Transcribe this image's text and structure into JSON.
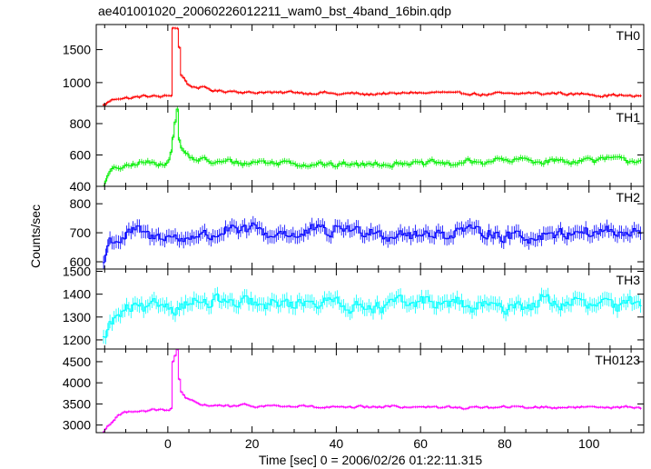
{
  "title": "ae401001020_20060226012211_wam0_bst_4band_16bin.qdp",
  "xlabel": "Time [sec] 0 = 2006/02/26 01:22:11.315",
  "ylabel": "Counts/sec",
  "chart_data": {
    "type": "line",
    "title": "ae401001020_20060226012211_wam0_bst_4band_16bin.qdp",
    "xlabel": "Time [sec] 0 = 2006/02/26 01:22:11.315",
    "ylabel": "Counts/sec",
    "xlim": [
      -17,
      113
    ],
    "x_ticks": [
      "0",
      "20",
      "40",
      "60",
      "80",
      "100"
    ],
    "x_step": 0.5,
    "panels": [
      {
        "name": "TH0",
        "color": "#ff0000",
        "ylim": [
          640,
          1880
        ],
        "y_ticks": [
          1000,
          1500
        ],
        "baseline": 810,
        "noise": 40,
        "keypoints": [
          [
            -15.5,
            660
          ],
          [
            -14,
            720
          ],
          [
            -12,
            760
          ],
          [
            -8,
            790
          ],
          [
            0,
            800
          ],
          [
            0.8,
            810
          ],
          [
            1.0,
            1820
          ],
          [
            2.2,
            1820
          ],
          [
            2.4,
            1600
          ],
          [
            2.6,
            1450
          ],
          [
            3,
            1100
          ],
          [
            5,
            950
          ],
          [
            10,
            880
          ],
          [
            20,
            860
          ],
          [
            40,
            830
          ],
          [
            60,
            840
          ],
          [
            80,
            830
          ],
          [
            100,
            830
          ],
          [
            112,
            790
          ]
        ]
      },
      {
        "name": "TH1",
        "color": "#00ee00",
        "ylim": [
          400,
          910
        ],
        "y_ticks": [
          400,
          600,
          800
        ],
        "baseline": 545,
        "noise": 33,
        "keypoints": [
          [
            -15.5,
            410
          ],
          [
            -14,
            490
          ],
          [
            -12,
            520
          ],
          [
            -8,
            540
          ],
          [
            0,
            550
          ],
          [
            0.6,
            620
          ],
          [
            1.2,
            760
          ],
          [
            2.0,
            880
          ],
          [
            2.4,
            700
          ],
          [
            3,
            640
          ],
          [
            6,
            570
          ],
          [
            20,
            550
          ],
          [
            50,
            540
          ],
          [
            80,
            560
          ],
          [
            100,
            570
          ],
          [
            112,
            560
          ]
        ]
      },
      {
        "name": "TH2",
        "color": "#0000ff",
        "ylim": [
          575,
          860
        ],
        "y_ticks": [
          600,
          700,
          800
        ],
        "baseline": 695,
        "noise": 42,
        "keypoints": [
          [
            -15.5,
            590
          ],
          [
            -14,
            660
          ],
          [
            -10,
            690
          ],
          [
            0,
            690
          ],
          [
            20,
            700
          ],
          [
            40,
            705
          ],
          [
            60,
            700
          ],
          [
            80,
            695
          ],
          [
            100,
            700
          ],
          [
            112,
            700
          ]
        ]
      },
      {
        "name": "TH3",
        "color": "#00ffff",
        "ylim": [
          1160,
          1510
        ],
        "y_ticks": [
          1200,
          1300,
          1400,
          1500
        ],
        "baseline": 1350,
        "noise": 55,
        "keypoints": [
          [
            -15.5,
            1180
          ],
          [
            -14,
            1260
          ],
          [
            -12,
            1320
          ],
          [
            -5,
            1350
          ],
          [
            20,
            1360
          ],
          [
            40,
            1360
          ],
          [
            60,
            1355
          ],
          [
            80,
            1350
          ],
          [
            100,
            1360
          ],
          [
            112,
            1350
          ]
        ]
      },
      {
        "name": "TH0123",
        "color": "#ff00ff",
        "ylim": [
          2820,
          4800
        ],
        "y_ticks": [
          3000,
          3500,
          4000,
          4500
        ],
        "baseline": 3400,
        "noise": 55,
        "keypoints": [
          [
            -15.5,
            2850
          ],
          [
            -14,
            3050
          ],
          [
            -12,
            3250
          ],
          [
            -8,
            3350
          ],
          [
            0,
            3330
          ],
          [
            0.8,
            3400
          ],
          [
            1.0,
            4500
          ],
          [
            2.0,
            4800
          ],
          [
            2.4,
            4200
          ],
          [
            2.8,
            3800
          ],
          [
            4,
            3600
          ],
          [
            8,
            3480
          ],
          [
            20,
            3450
          ],
          [
            40,
            3420
          ],
          [
            60,
            3430
          ],
          [
            80,
            3410
          ],
          [
            100,
            3440
          ],
          [
            112,
            3400
          ]
        ]
      }
    ]
  }
}
